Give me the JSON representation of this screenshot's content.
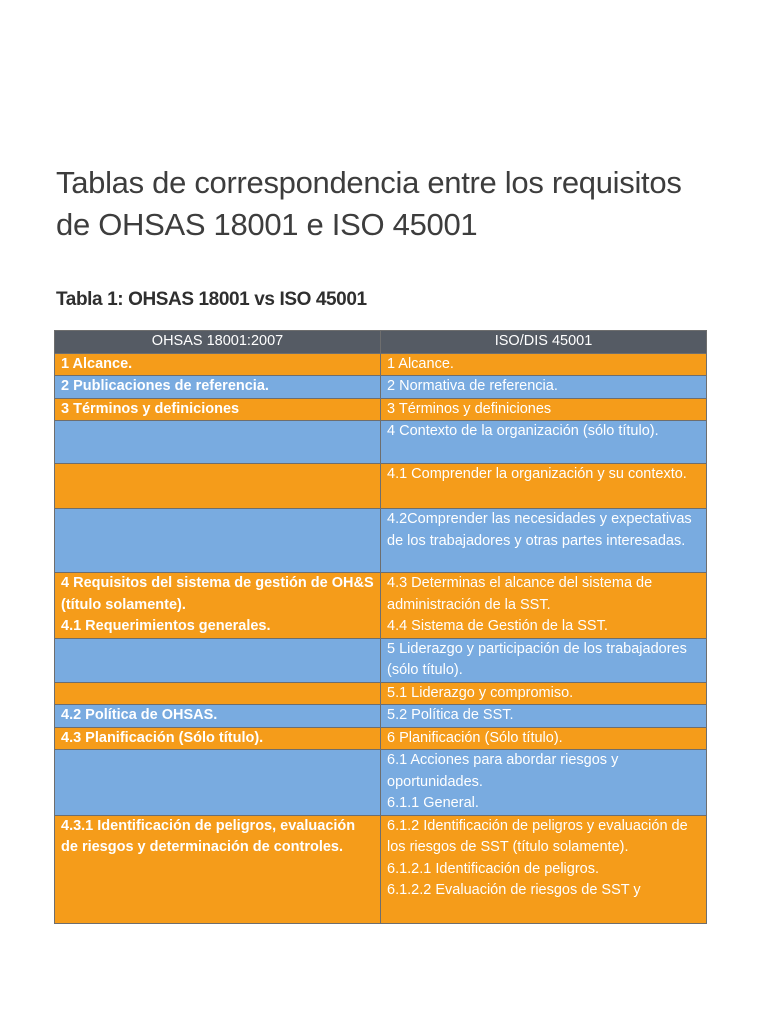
{
  "document": {
    "title": "Tablas de correspondencia entre los requisitos de OHSAS 18001 e ISO 45001",
    "table_caption": "Tabla 1: OHSAS 18001 vs ISO 45001"
  },
  "colors": {
    "header": "#555b64",
    "orange": "#f59c1a",
    "blue": "#79abe0",
    "text": "#ffffff"
  },
  "table": {
    "headers": [
      "OHSAS 18001:2007",
      "ISO/DIS 45001"
    ],
    "rows": [
      {
        "color": "orange",
        "ohsas": [
          "1 Alcance."
        ],
        "iso": [
          "1 Alcance."
        ]
      },
      {
        "color": "blue",
        "ohsas": [
          "2 Publicaciones de referencia."
        ],
        "iso": [
          "2 Normativa de referencia."
        ]
      },
      {
        "color": "orange",
        "ohsas": [
          "3 Términos y definiciones"
        ],
        "iso": [
          "3 Términos y definiciones"
        ]
      },
      {
        "color": "blue",
        "ohsas": [],
        "iso": [
          "4 Contexto de la organización (sólo título)."
        ]
      },
      {
        "color": "orange",
        "ohsas": [],
        "iso": [
          "4.1 Comprender la organización y su contexto."
        ]
      },
      {
        "color": "blue",
        "ohsas": [],
        "iso": [
          "4.2Comprender las necesidades y expectativas de los trabajadores y otras partes interesadas."
        ]
      },
      {
        "color": "orange",
        "ohsas": [
          "4 Requisitos del sistema de gestión de OH&S (título solamente).",
          "4.1 Requerimientos generales."
        ],
        "iso": [
          "4.3 Determinas el alcance del sistema de administración de la SST.",
          "4.4 Sistema de Gestión de la SST."
        ]
      },
      {
        "color": "blue",
        "ohsas": [],
        "iso": [
          "5 Liderazgo y participación de los trabajadores (sólo título)."
        ]
      },
      {
        "color": "orange",
        "ohsas": [],
        "iso": [
          "5.1 Liderazgo y compromiso."
        ]
      },
      {
        "color": "blue",
        "ohsas": [
          "4.2 Política de OHSAS."
        ],
        "iso": [
          "5.2 Política de SST."
        ]
      },
      {
        "color": "orange",
        "ohsas": [
          "4.3 Planificación (Sólo título)."
        ],
        "iso": [
          "6 Planificación (Sólo título)."
        ]
      },
      {
        "color": "blue",
        "ohsas": [],
        "iso": [
          "6.1 Acciones para abordar riesgos y oportunidades.",
          "6.1.1 General."
        ]
      },
      {
        "color": "orange",
        "ohsas": [
          "4.3.1 Identificación de peligros, evaluación de riesgos y determinación de controles."
        ],
        "iso": [
          "6.1.2 Identificación de peligros y evaluación de los riesgos de SST (título solamente).",
          "6.1.2.1 Identificación de peligros.",
          "6.1.2.2 Evaluación de riesgos de SST y"
        ]
      }
    ]
  }
}
